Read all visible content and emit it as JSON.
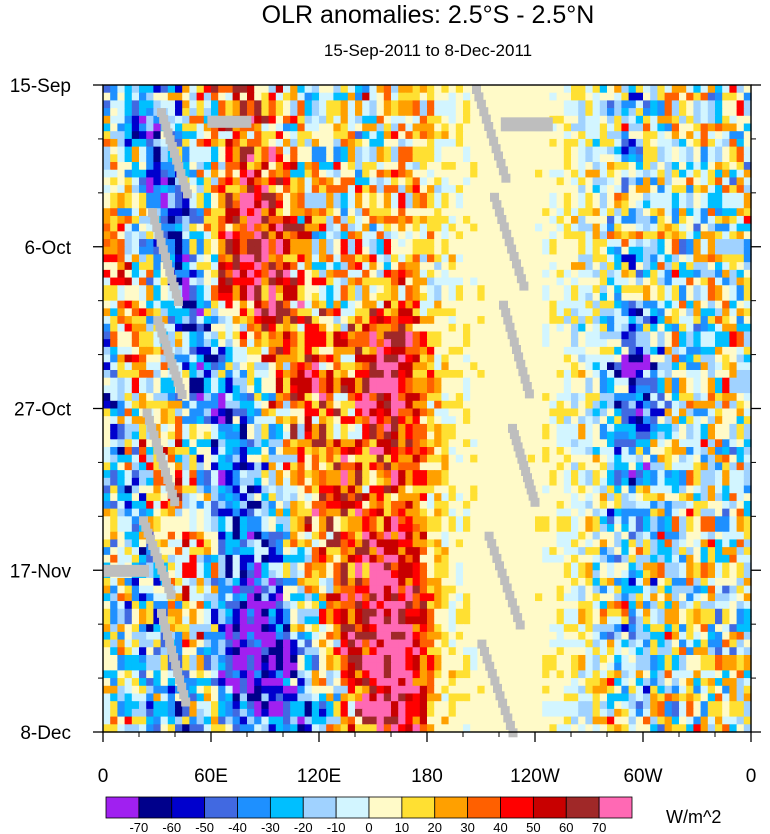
{
  "chart_data": {
    "type": "heatmap",
    "title": "OLR anomalies: 2.5°S - 2.5°N",
    "subtitle": "15-Sep-2011 to 8-Dec-2011",
    "variable": "OLR anomaly",
    "units": "W/m^2",
    "xlabel": "",
    "ylabel": "",
    "x_ticks": [
      "0",
      "60E",
      "120E",
      "180",
      "120W",
      "60W",
      "0"
    ],
    "x_tick_values": [
      0,
      60,
      120,
      180,
      240,
      300,
      360
    ],
    "xlim": [
      0,
      360
    ],
    "y_ticks": [
      "15-Sep",
      "6-Oct",
      "27-Oct",
      "17-Nov",
      "8-Dec"
    ],
    "y_tick_values": [
      0,
      21,
      42,
      63,
      84
    ],
    "ylim": [
      0,
      84
    ],
    "colorbar": {
      "levels": [
        -70,
        -60,
        -50,
        -40,
        -30,
        -20,
        -10,
        0,
        10,
        20,
        30,
        40,
        50,
        60,
        70
      ],
      "labels": [
        "-70",
        "-60",
        "-50",
        "-40",
        "-30",
        "-20",
        "-10",
        "0",
        "10",
        "20",
        "30",
        "40",
        "50",
        "60",
        "70"
      ],
      "colors": [
        "#a020f0",
        "#00008b",
        "#0000cd",
        "#4169e1",
        "#1e90ff",
        "#00bfff",
        "#a0d2ff",
        "#d2f5ff",
        "#fffac8",
        "#ffe032",
        "#ffa000",
        "#ff6000",
        "#ff0000",
        "#c80000",
        "#a02828",
        "#ff69b4"
      ]
    },
    "missing_color": "#bebebe",
    "features": [
      {
        "name": "Eastward-propagating negative anomaly band (MJO)",
        "lon_start": 20,
        "day_start": 0,
        "lon_end": 110,
        "day_end": 84,
        "value": -45
      },
      {
        "name": "Strong negative anomaly, Indian Ocean",
        "lon": 75,
        "day": 75,
        "value": -70
      },
      {
        "name": "Positive anomaly, western Pacific",
        "lon": 155,
        "day": 38,
        "value": 55
      },
      {
        "name": "Positive anomaly, Indian Ocean",
        "lon": 75,
        "day": 24,
        "value": 50
      },
      {
        "name": "Positive anomaly band near dateline",
        "lon": 165,
        "day": 70,
        "value": 45
      },
      {
        "name": "Negative anomalies, South America",
        "lon": 295,
        "day": 40,
        "value": -40
      }
    ]
  }
}
